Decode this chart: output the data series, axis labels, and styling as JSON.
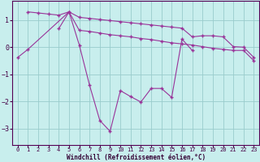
{
  "xlabel": "Windchill (Refroidissement éolien,°C)",
  "color": "#993399",
  "bg_color": "#c8eeed",
  "grid_color": "#99cccc",
  "ylim": [
    -3.6,
    1.7
  ],
  "yticks": [
    -3,
    -2,
    -1,
    0,
    1
  ],
  "xticks": [
    0,
    1,
    2,
    3,
    4,
    5,
    6,
    7,
    8,
    9,
    10,
    11,
    12,
    13,
    14,
    15,
    16,
    17,
    18,
    19,
    20,
    21,
    22,
    23
  ],
  "line1_x": [
    1,
    2,
    3,
    4,
    5,
    6,
    7,
    8,
    9,
    10,
    11,
    12,
    13,
    14,
    15,
    16,
    17,
    18,
    19,
    20,
    21,
    22,
    23
  ],
  "line1_y": [
    1.3,
    1.26,
    1.22,
    1.18,
    1.3,
    1.1,
    1.06,
    1.02,
    0.98,
    0.94,
    0.9,
    0.86,
    0.82,
    0.78,
    0.74,
    0.7,
    0.38,
    0.42,
    0.42,
    0.38,
    0.02,
    0.0,
    -0.38
  ],
  "line2_x": [
    4,
    5,
    6,
    7,
    8,
    9,
    10,
    11,
    12,
    13,
    14,
    15,
    16,
    17,
    18,
    19,
    20,
    21,
    22,
    23
  ],
  "line2_y": [
    0.68,
    1.3,
    0.62,
    0.58,
    0.52,
    0.46,
    0.42,
    0.38,
    0.32,
    0.28,
    0.22,
    0.16,
    0.12,
    0.08,
    0.02,
    -0.04,
    -0.08,
    -0.12,
    -0.12,
    -0.5
  ],
  "line3_x": [
    0,
    1,
    5,
    6,
    7,
    8,
    9,
    10,
    11,
    12,
    13,
    14,
    15,
    16,
    17
  ],
  "line3_y": [
    -0.38,
    -0.08,
    1.3,
    0.08,
    -1.4,
    -2.7,
    -3.1,
    -1.6,
    -1.82,
    -2.02,
    -1.52,
    -1.52,
    -1.85,
    0.3,
    -0.12
  ]
}
